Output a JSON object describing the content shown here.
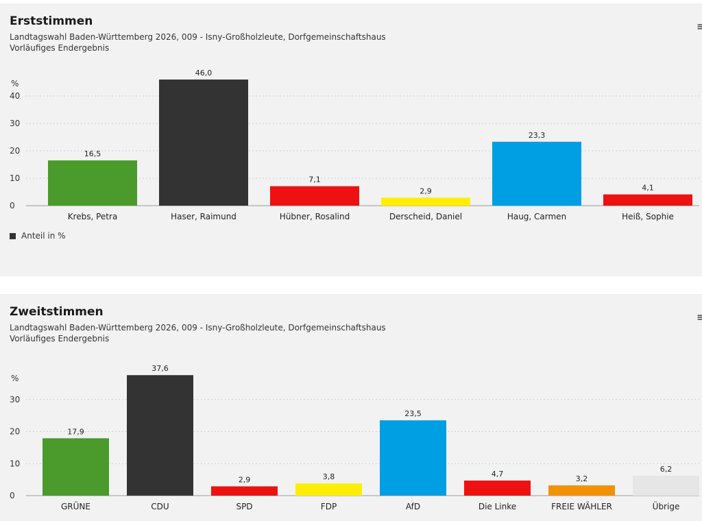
{
  "chart_data": [
    {
      "type": "bar",
      "title": "Erststimmen",
      "subtitle_line1": "Landtagswahl Baden-Württemberg 2026, 009 - Isny-Großholzleute, Dorfgemeinschaftshaus",
      "subtitle_line2": "Vorläufiges Endergebnis",
      "ylabel": "%",
      "ylim": [
        0,
        50
      ],
      "yticks": [
        "0",
        "10",
        "20",
        "30",
        "40"
      ],
      "categories": [
        "Krebs, Petra",
        "Haser, Raimund",
        "Hübner, Rosalind",
        "Derscheid, Daniel",
        "Haug, Carmen",
        "Heiß, Sophie"
      ],
      "values": [
        16.5,
        46.0,
        7.1,
        2.9,
        23.3,
        4.1
      ],
      "value_labels": [
        "16,5",
        "46,0",
        "7,1",
        "2,9",
        "23,3",
        "4,1"
      ],
      "colors": [
        "#4a9a2c",
        "#333333",
        "#ee1111",
        "#ffee00",
        "#009fe3",
        "#ee1111"
      ],
      "grid": true,
      "legend": "bottom-left",
      "legend_label": "Anteil in %"
    },
    {
      "type": "bar",
      "title": "Zweitstimmen",
      "subtitle_line1": "Landtagswahl Baden-Württemberg 2026, 009 - Isny-Großholzleute, Dorfgemeinschaftshaus",
      "subtitle_line2": "Vorläufiges Endergebnis",
      "ylabel": "%",
      "ylim": [
        0,
        40
      ],
      "yticks": [
        "0",
        "10",
        "20",
        "30"
      ],
      "categories": [
        "GRÜNE",
        "CDU",
        "SPD",
        "FDP",
        "AfD",
        "Die Linke",
        "FREIE WÄHLER",
        "Übrige"
      ],
      "values": [
        17.9,
        37.6,
        2.9,
        3.8,
        23.5,
        4.7,
        3.2,
        6.2
      ],
      "value_labels": [
        "17,9",
        "37,6",
        "2,9",
        "3,8",
        "23,5",
        "4,7",
        "3,2",
        "6,2"
      ],
      "colors": [
        "#4a9a2c",
        "#333333",
        "#ee1111",
        "#ffee00",
        "#009fe3",
        "#ee1111",
        "#f39200",
        "#e6e6e6"
      ],
      "grid": true
    }
  ]
}
